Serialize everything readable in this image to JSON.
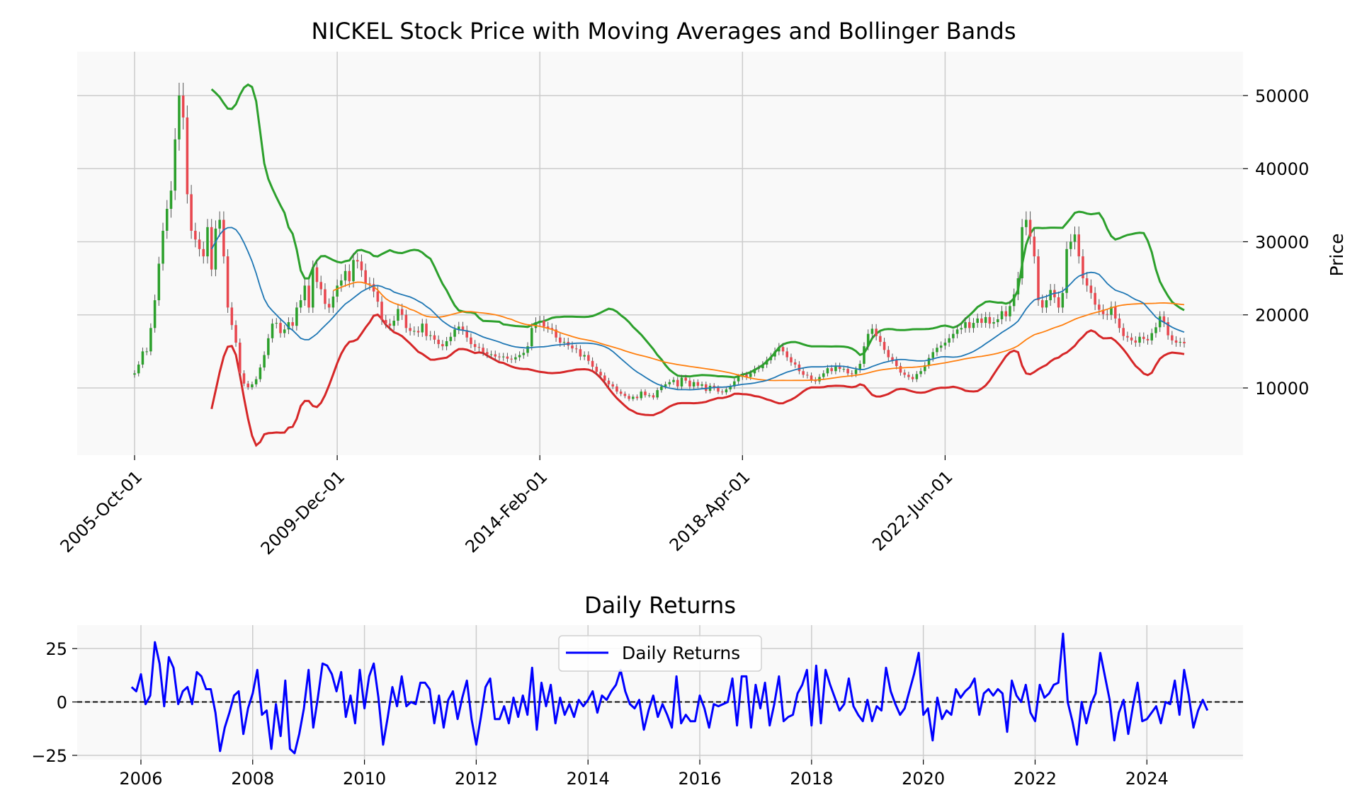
{
  "colors": {
    "panel_bg": "#f9f9f9",
    "grid": "#cccccc",
    "up": "#2ca02c",
    "down": "#e8474f",
    "wick": "#555555",
    "upper_band": "#2ca02c",
    "lower_band": "#d62728",
    "ma_short": "#1f77b4",
    "ma_long": "#ff7f0e",
    "returns": "#0000ff",
    "zero_line": "#000000"
  },
  "chart_data": [
    {
      "type": "candlestick",
      "title": "NICKEL Stock Price with Moving Averages and Bollinger Bands",
      "ylabel": "Price",
      "xlabel": "",
      "ylim": [
        800,
        56000
      ],
      "y_ticks": [
        10000,
        20000,
        30000,
        40000,
        50000
      ],
      "x_ticks": [
        "2005-Oct-01",
        "2009-Dec-01",
        "2014-Feb-01",
        "2018-Apr-01",
        "2022-Jun-01"
      ],
      "grid": true,
      "frequency": "monthly",
      "start": "2005-Oct",
      "close": [
        12000,
        13200,
        15000,
        15000,
        18200,
        22000,
        27000,
        31500,
        34500,
        37000,
        44000,
        50000,
        47000,
        36500,
        31500,
        30300,
        29000,
        28000,
        32000,
        26200,
        31800,
        33000,
        28000,
        21000,
        18600,
        16200,
        12000,
        10600,
        10100,
        10500,
        11200,
        12800,
        14500,
        16800,
        18800,
        18900,
        17500,
        18000,
        19000,
        18500,
        21000,
        22000,
        24000,
        21000,
        26500,
        24500,
        23500,
        21500,
        21000,
        22500,
        24000,
        24700,
        26000,
        24600,
        27500,
        27300,
        26100,
        24300,
        24200,
        23200,
        21800,
        19300,
        18800,
        18500,
        19200,
        20800,
        20000,
        18200,
        17800,
        17800,
        17600,
        18800,
        17100,
        17200,
        16600,
        16000,
        15700,
        16400,
        17000,
        18000,
        18400,
        17900,
        16900,
        16000,
        15600,
        15500,
        14900,
        14600,
        14600,
        14300,
        14200,
        14300,
        14000,
        13900,
        14200,
        14500,
        14800,
        15700,
        18200,
        19000,
        19200,
        18400,
        18200,
        18000,
        16900,
        16200,
        16300,
        15800,
        15400,
        15300,
        14300,
        14500,
        13700,
        12900,
        12200,
        11700,
        11000,
        10500,
        10200,
        9500,
        9200,
        8900,
        8500,
        8800,
        8600,
        9500,
        9000,
        9000,
        8700,
        9700,
        10200,
        10500,
        10800,
        11100,
        10200,
        11400,
        11000,
        10200,
        10800,
        10300,
        10500,
        9600,
        10300,
        10000,
        9500,
        9400,
        9800,
        10200,
        10900,
        11500,
        11800,
        11500,
        12000,
        12600,
        12700,
        13200,
        13800,
        14300,
        15000,
        15600,
        15000,
        14200,
        13500,
        13200,
        12300,
        11800,
        11700,
        11100,
        10900,
        11500,
        12000,
        12700,
        12300,
        13000,
        12600,
        12600,
        12000,
        11900,
        12500,
        13300,
        15700,
        17400,
        18100,
        17100,
        16300,
        15200,
        14200,
        13800,
        13000,
        12100,
        11800,
        11500,
        11200,
        11900,
        12300,
        13100,
        14100,
        14900,
        15500,
        15800,
        16200,
        16800,
        17400,
        18000,
        18200,
        19000,
        18200,
        18900,
        19500,
        18900,
        19700,
        18800,
        19000,
        19400,
        20500,
        19800,
        21200,
        22800,
        25000,
        32000,
        33000,
        30700,
        28000,
        22000,
        21000,
        22000,
        23400,
        22400,
        21000,
        23000,
        29000,
        30000,
        31000,
        28000,
        25000,
        24000,
        23000,
        21400,
        20700,
        20100,
        20000,
        21100,
        19500,
        18200,
        17100,
        16900,
        16500,
        16200,
        17000,
        16700,
        16500,
        17500,
        18300,
        19800,
        19000,
        17200,
        16500,
        16200,
        16300,
        16100
      ]
    },
    {
      "type": "line",
      "title": "Daily Returns",
      "xlabel": "",
      "ylabel": "",
      "ylim": [
        -27,
        36
      ],
      "y_ticks": [
        -25,
        0,
        25
      ],
      "x_ticks": [
        2006,
        2008,
        2010,
        2012,
        2014,
        2016,
        2018,
        2020,
        2022,
        2024
      ],
      "legend": "top-center",
      "grid": true,
      "series": [
        {
          "name": "Daily Returns",
          "x_start": "2005-Nov",
          "frequency": "monthly",
          "values": [
            7,
            5,
            13,
            -1,
            3,
            28,
            18,
            -2,
            21,
            16,
            -1,
            5,
            7,
            -1,
            14,
            12,
            6,
            6,
            -5,
            -23,
            -12,
            -5,
            3,
            5,
            -15,
            -3,
            4,
            15,
            -6,
            -4,
            -22,
            -1,
            -16,
            10,
            -22,
            -24,
            -15,
            -3,
            15,
            -12,
            2,
            18,
            17,
            13,
            5,
            14,
            -7,
            3,
            -10,
            15,
            -3,
            12,
            18,
            2,
            -20,
            -7,
            7,
            -2,
            12,
            -2,
            0,
            -1,
            9,
            9,
            6,
            -10,
            3,
            -12,
            1,
            5,
            -8,
            2,
            10,
            -8,
            -20,
            -7,
            7,
            11,
            -8,
            -8,
            -2,
            -10,
            2,
            -7,
            3,
            -6,
            16,
            -13,
            9,
            -2,
            8,
            -10,
            2,
            -6,
            -1,
            -7,
            1,
            -2,
            1,
            5,
            -5,
            3,
            1,
            5,
            8,
            15,
            5,
            -1,
            -3,
            1,
            -13,
            -4,
            3,
            -7,
            -1,
            -6,
            -12,
            12,
            -10,
            -6,
            -9,
            -9,
            3,
            -3,
            -12,
            -1,
            -2,
            -1,
            0,
            11,
            -11,
            12,
            12,
            -12,
            8,
            -3,
            9,
            -11,
            -1,
            12,
            -9,
            -7,
            -6,
            4,
            8,
            15,
            -11,
            17,
            -10,
            15,
            8,
            2,
            -4,
            -1,
            11,
            -2,
            -6,
            -9,
            1,
            -9,
            -2,
            -4,
            16,
            5,
            -1,
            -6,
            -3,
            5,
            13,
            23,
            -6,
            -3,
            -18,
            2,
            -8,
            -4,
            -6,
            6,
            2,
            5,
            7,
            11,
            -6,
            4,
            6,
            3,
            6,
            4,
            -14,
            10,
            3,
            0,
            8,
            -5,
            -9,
            8,
            2,
            4,
            8,
            9,
            32,
            0,
            -9,
            -20,
            0,
            -10,
            -1,
            4,
            23,
            12,
            1,
            -18,
            -5,
            1,
            -15,
            -2,
            9,
            -9,
            -8,
            -5,
            -2,
            -10,
            0,
            -1,
            10,
            -6,
            15,
            3,
            -12,
            -4,
            1,
            -4
          ]
        }
      ]
    }
  ]
}
